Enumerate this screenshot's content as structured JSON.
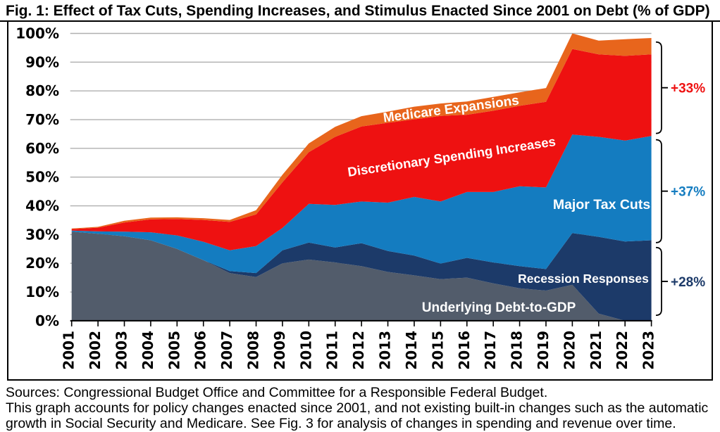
{
  "title": "Fig. 1: Effect of Tax Cuts, Spending Increases, and Stimulus Enacted Since 2001 on Debt (% of GDP)",
  "footer": {
    "line1": "Sources: Congressional Budget Office and Committee for a Responsible Federal Budget.",
    "line2": "This graph accounts for policy changes enacted since 2001, and not existing built-in changes such as the automatic",
    "line3": "growth in Social Security and Medicare. See Fig. 3 for analysis of changes in spending and revenue over time."
  },
  "chart_data": {
    "type": "area",
    "stacked": true,
    "grid": true,
    "ylim": [
      0,
      100
    ],
    "yticks": [
      "0%",
      "10%",
      "20%",
      "30%",
      "40%",
      "50%",
      "60%",
      "70%",
      "80%",
      "90%",
      "100%"
    ],
    "categories": [
      "2001",
      "2002",
      "2003",
      "2004",
      "2005",
      "2006",
      "2007",
      "2008",
      "2009",
      "2010",
      "2011",
      "2012",
      "2013",
      "2014",
      "2015",
      "2016",
      "2017",
      "2018",
      "2019",
      "2020",
      "2021",
      "2022",
      "2023"
    ],
    "series": [
      {
        "name": "Underlying Debt-to-GDP",
        "color": "#525C6B",
        "values": [
          31.0,
          30.3,
          29.4,
          28.0,
          25.0,
          21.1,
          16.6,
          15.2,
          20.0,
          21.3,
          20.3,
          19.0,
          17.0,
          15.8,
          14.5,
          15.0,
          13.0,
          11.3,
          10.5,
          12.5,
          2.5,
          0,
          0
        ]
      },
      {
        "name": "Recession Responses",
        "color": "#1C3A69",
        "values": [
          0,
          0,
          0,
          0,
          0,
          0,
          0.7,
          1.4,
          4.5,
          5.9,
          5.2,
          8.0,
          7.3,
          6.9,
          5.4,
          6.9,
          7.3,
          7.7,
          7.5,
          18.0,
          26.7,
          27.6,
          28.0
        ]
      },
      {
        "name": "Major Tax Cuts",
        "color": "#147CC0",
        "values": [
          0.4,
          0.8,
          1.6,
          2.8,
          4.7,
          6.4,
          7.2,
          9.4,
          7.8,
          13.5,
          14.8,
          14.5,
          16.8,
          20.4,
          21.6,
          22.9,
          24.5,
          27.8,
          28.4,
          34.3,
          34.8,
          35.1,
          36.3
        ]
      },
      {
        "name": "Discretionary Spending Increases",
        "color": "#EE1111",
        "values": [
          0.5,
          1.3,
          3.2,
          4.5,
          5.7,
          7.6,
          9.9,
          11.0,
          15.9,
          18.0,
          23.7,
          26.1,
          27.8,
          27.0,
          29.8,
          26.9,
          28.3,
          28.0,
          29.8,
          29.8,
          28.7,
          29.5,
          28.4
        ]
      },
      {
        "name": "Medicare Expansions",
        "color": "#E8651C",
        "values": [
          0.2,
          0.3,
          0.6,
          0.6,
          0.6,
          0.6,
          0.7,
          1.5,
          2.6,
          3.0,
          3.5,
          3.6,
          3.9,
          4.4,
          4.3,
          4.6,
          4.8,
          4.7,
          4.8,
          5.4,
          4.8,
          5.8,
          5.7
        ]
      }
    ],
    "annotations": [
      {
        "label": "+33%",
        "color": "#EE1111",
        "span": [
          65.2,
          97.0
        ]
      },
      {
        "label": "+37%",
        "color": "#147CC0",
        "span": [
          27.2,
          63.0
        ]
      },
      {
        "label": "+28%",
        "color": "#1C3A69",
        "span": [
          1.9,
          25.5
        ]
      }
    ]
  }
}
